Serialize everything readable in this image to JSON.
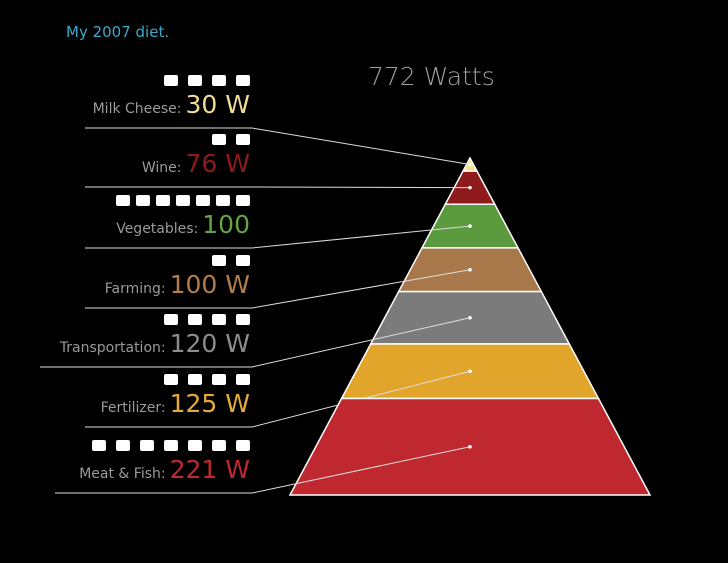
{
  "chart_data": {
    "type": "pyramid",
    "title": "My 2007 diet.",
    "total_label": "772 Watts",
    "categories": [
      "Milk Cheese:",
      "Wine:",
      "Vegetables:",
      "Farming:",
      "Transportation:",
      "Fertilizer:",
      "Meat & Fish:"
    ],
    "values": [
      30,
      76,
      100,
      100,
      120,
      125,
      221
    ],
    "value_labels": [
      "30 W",
      "76 W",
      "100",
      "100 W",
      "120 W",
      "125 W",
      "221 W"
    ],
    "colors": [
      "#f3e08c",
      "#8e1a1c",
      "#5c9a3e",
      "#a9784a",
      "#7b7b7b",
      "#e2a52c",
      "#c0282f"
    ],
    "label_colors": [
      "#eedc96",
      "#8e1a1c",
      "#63a443",
      "#b27c4c",
      "#8c8c8c",
      "#e6aa3c",
      "#c0282f"
    ]
  }
}
